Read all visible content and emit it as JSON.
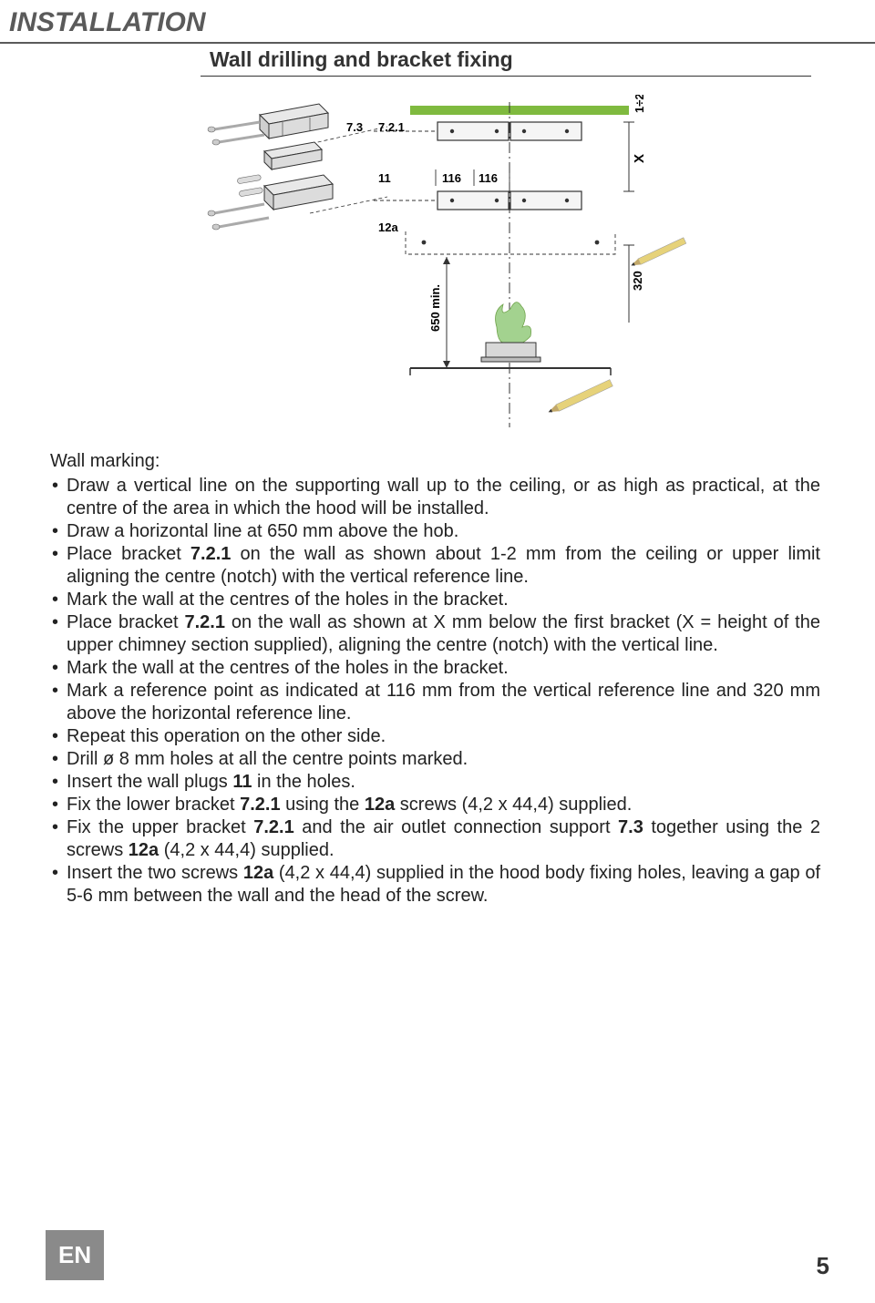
{
  "header": {
    "title": "INSTALLATION",
    "subtitle": "Wall drilling and bracket fixing"
  },
  "diagram": {
    "labels": {
      "l73": "7.3",
      "l721": "7.2.1",
      "l11": "11",
      "l116a": "116",
      "l116b": "116",
      "l12a": "12a",
      "l320": "320",
      "l650": "650 min.",
      "lX": "X",
      "l1_2": "1÷2"
    },
    "colors": {
      "bracket_top": "#7fba3f",
      "hob_flame": "#a3d28f",
      "hob_body": "#bcbcbc",
      "bracket_face": "#e0e0e0",
      "screw": "#c8c8c8",
      "pencil_body": "#e6d27a",
      "pencil_tip": "#5a4a2a",
      "line": "#333333",
      "dash": "#333333"
    }
  },
  "content": {
    "heading": "Wall marking:",
    "bullets": [
      "Draw a vertical line on the supporting wall up to the ceiling, or as high as practical, at the centre of the area in which the hood will be installed.",
      "Draw a horizontal line at 650 mm above the hob.",
      "Place bracket <b>7.2.1</b> on the wall as shown about 1-2 mm from the ceiling or upper limit aligning the centre (notch) with the vertical reference line.",
      "Mark the wall at the centres of the holes in the bracket.",
      "Place bracket <b>7.2.1</b> on the wall as shown at X mm below the first bracket (X = height of the upper chimney section supplied), aligning the centre (notch) with the vertical line.",
      "Mark the wall at the centres of the holes in the bracket.",
      "Mark a reference point as indicated at 116 mm from the vertical reference line and 320 mm above the horizontal reference line.",
      "Repeat this operation on the other side.",
      "Drill ø 8 mm holes at all the centre points marked.",
      "Insert the wall plugs <b>11</b> in the holes.",
      "Fix the lower bracket <b>7.2.1</b> using the <b>12a</b> screws (4,2 x 44,4) supplied.",
      "Fix the upper bracket <b>7.2.1</b> and the air outlet connection support <b>7.3</b> together using the 2 screws <b>12a</b> (4,2 x 44,4) supplied.",
      "Insert the two screws <b>12a</b> (4,2 x 44,4) supplied in the hood body fixing holes, leaving a gap of 5-6 mm between the wall and the head of the screw."
    ]
  },
  "footer": {
    "lang": "EN",
    "page": "5"
  }
}
